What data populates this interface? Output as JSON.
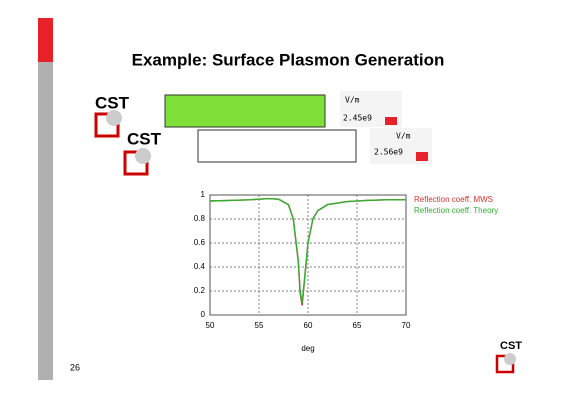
{
  "slide": {
    "title": "Example: Surface Plasmon Generation",
    "page_number": "26",
    "logos": [
      "CST",
      "CST",
      "CST"
    ],
    "field_views": [
      {
        "unit": "V/m",
        "max": "2.45e9"
      },
      {
        "unit": "V/m",
        "max": "2.56e9"
      }
    ]
  },
  "chart_data": {
    "type": "line",
    "xlabel": "deg",
    "x": [
      50,
      52,
      54,
      55,
      56,
      57,
      58,
      58.5,
      59,
      59.2,
      59.4,
      59.6,
      60,
      60.5,
      61,
      62,
      64,
      66,
      68,
      70
    ],
    "series": [
      {
        "name": "Reflection coeff. MWS",
        "color": "#e03030",
        "values": [
          0.95,
          0.955,
          0.96,
          0.965,
          0.97,
          0.965,
          0.92,
          0.8,
          0.45,
          0.18,
          0.08,
          0.25,
          0.6,
          0.8,
          0.87,
          0.92,
          0.945,
          0.955,
          0.96,
          0.96
        ]
      },
      {
        "name": "Reflection coeff. Theory",
        "color": "#30b030",
        "values": [
          0.95,
          0.955,
          0.96,
          0.965,
          0.97,
          0.965,
          0.92,
          0.8,
          0.46,
          0.2,
          0.1,
          0.26,
          0.6,
          0.8,
          0.87,
          0.92,
          0.945,
          0.955,
          0.96,
          0.96
        ]
      }
    ],
    "xlim": [
      50,
      70
    ],
    "ylim": [
      0,
      1
    ],
    "xticks": [
      50,
      55,
      60,
      65,
      70
    ],
    "yticks": [
      0,
      0.2,
      0.4,
      0.6,
      0.8,
      1
    ],
    "grid": true
  }
}
